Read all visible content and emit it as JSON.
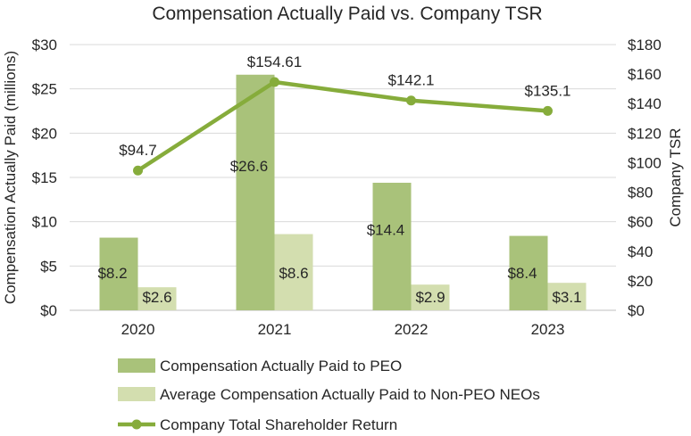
{
  "chart_data": {
    "type": "bar",
    "title": "Compensation Actually Paid vs. Company TSR",
    "categories": [
      "2020",
      "2021",
      "2022",
      "2023"
    ],
    "ylabel": "Compensation Actually Paid (millions)",
    "y2label": "Company TSR",
    "ylim": [
      0,
      30
    ],
    "y2lim": [
      0,
      180
    ],
    "yticks": [
      "$0",
      "$5",
      "$10",
      "$15",
      "$20",
      "$25",
      "$30"
    ],
    "y2ticks": [
      "$0",
      "$20",
      "$40",
      "$60",
      "$80",
      "$100",
      "$120",
      "$140",
      "$160",
      "$180"
    ],
    "grid": true,
    "legend_position": "bottom",
    "series": [
      {
        "name": "Compensation Actually Paid to PEO",
        "type": "bar",
        "axis": "left",
        "color": "#A9C27A",
        "values": [
          8.2,
          26.6,
          14.4,
          8.4
        ],
        "labels": [
          "$8.2",
          "$26.6",
          "$14.4",
          "$8.4"
        ]
      },
      {
        "name": "Average Compensation Actually Paid to Non-PEO NEOs",
        "type": "bar",
        "axis": "left",
        "color": "#D3DEAF",
        "values": [
          2.6,
          8.6,
          2.9,
          3.1
        ],
        "labels": [
          "$2.6",
          "$8.6",
          "$2.9",
          "$3.1"
        ]
      },
      {
        "name": "Company Total Shareholder Return",
        "type": "line",
        "axis": "right",
        "color": "#86AC3B",
        "values": [
          94.7,
          154.61,
          142.1,
          135.1
        ],
        "labels": [
          "$94.7",
          "$154.61",
          "$142.1",
          "$135.1"
        ]
      }
    ]
  }
}
